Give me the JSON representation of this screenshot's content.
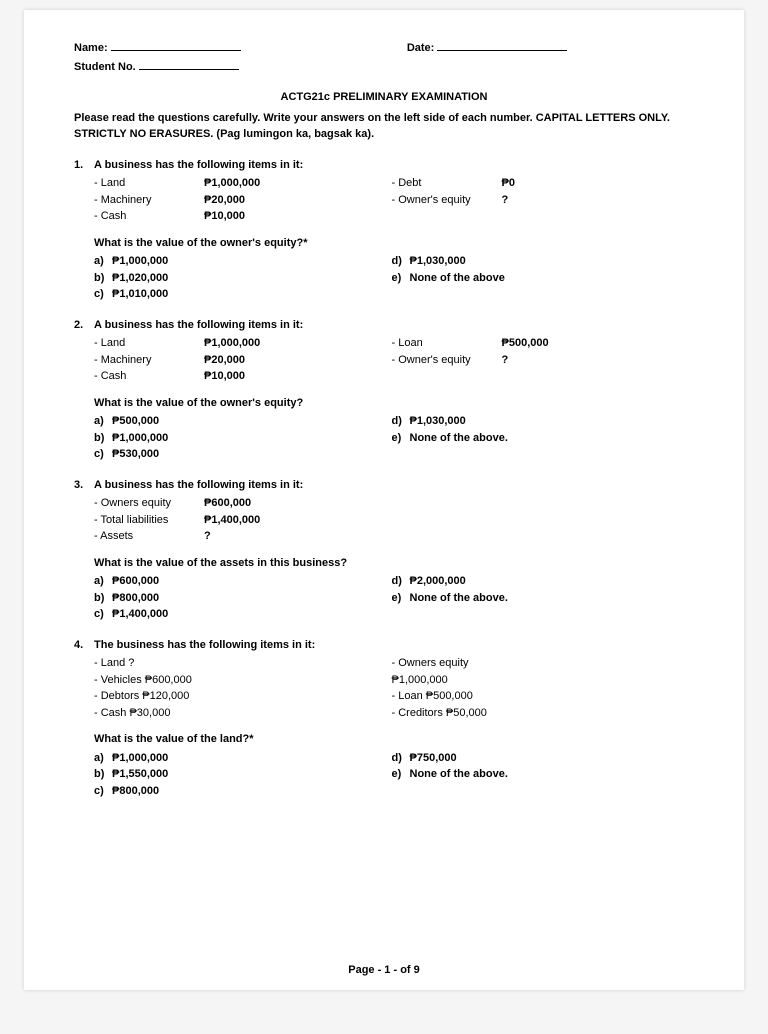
{
  "header": {
    "name_label": "Name:",
    "date_label": "Date:",
    "student_no_label": "Student No."
  },
  "title": "ACTG21c PRELIMINARY EXAMINATION",
  "intro": "Please read the questions carefully.  Write your answers on the left side of each number.  CAPITAL LETTERS ONLY.  STRICTLY NO ERASURES.  (Pag lumingon ka, bagsak ka).",
  "questions": [
    {
      "num": "1.",
      "stem": "A business has the following items in it:",
      "left_items": [
        {
          "label": "- Land",
          "val": "₱1,000,000"
        },
        {
          "label": "- Machinery",
          "val": "₱20,000"
        },
        {
          "label": "- Cash",
          "val": "₱10,000"
        }
      ],
      "right_items": [
        {
          "label": "- Debt",
          "val": "₱0"
        },
        {
          "label": "- Owner's equity",
          "val": "?"
        }
      ],
      "sub_q": "What is the value of the owner's equity?*",
      "opts_left": [
        {
          "l": "a)",
          "v": "₱1,000,000"
        },
        {
          "l": "b)",
          "v": "₱1,020,000"
        },
        {
          "l": "c)",
          "v": "₱1,010,000"
        }
      ],
      "opts_right": [
        {
          "l": "d)",
          "v": "₱1,030,000"
        },
        {
          "l": "e)",
          "v": "None of the above"
        }
      ]
    },
    {
      "num": "2.",
      "stem": "A business has the following items in it:",
      "left_items": [
        {
          "label": "- Land",
          "val": "₱1,000,000"
        },
        {
          "label": "- Machinery",
          "val": "₱20,000"
        },
        {
          "label": "- Cash",
          "val": "₱10,000"
        }
      ],
      "right_items": [
        {
          "label": "- Loan",
          "val": "₱500,000"
        },
        {
          "label": "- Owner's equity",
          "val": "?"
        }
      ],
      "sub_q": "What is the value of the owner's equity?",
      "opts_left": [
        {
          "l": "a)",
          "v": "₱500,000"
        },
        {
          "l": "b)",
          "v": "₱1,000,000"
        },
        {
          "l": "c)",
          "v": "₱530,000"
        }
      ],
      "opts_right": [
        {
          "l": "d)",
          "v": "₱1,030,000"
        },
        {
          "l": "e)",
          "v": "None of the above."
        }
      ]
    },
    {
      "num": "3.",
      "stem": "A business has the following items in it:",
      "left_items": [
        {
          "label": "- Owners equity",
          "val": "₱600,000"
        },
        {
          "label": "- Total liabilities",
          "val": "₱1,400,000"
        },
        {
          "label": "- Assets",
          "val": "?"
        }
      ],
      "right_items": [],
      "sub_q": "What is the value of the assets in this business?",
      "opts_left": [
        {
          "l": "a)",
          "v": "₱600,000"
        },
        {
          "l": "b)",
          "v": "₱800,000"
        },
        {
          "l": "c)",
          "v": "₱1,400,000"
        }
      ],
      "opts_right": [
        {
          "l": "d)",
          "v": "₱2,000,000"
        },
        {
          "l": "e)",
          "v": "None of the above."
        }
      ]
    },
    {
      "num": "4.",
      "stem": "The business has the following items in it:",
      "left_items": [
        {
          "label": "- Land ?",
          "val": ""
        },
        {
          "label": "- Vehicles ₱600,000",
          "val": ""
        },
        {
          "label": "- Debtors ₱120,000",
          "val": ""
        },
        {
          "label": "- Cash ₱30,000",
          "val": ""
        }
      ],
      "right_items": [
        {
          "label": "- Owners equity ₱1,000,000",
          "val": ""
        },
        {
          "label": "- Loan ₱500,000",
          "val": ""
        },
        {
          "label": "- Creditors ₱50,000",
          "val": ""
        }
      ],
      "sub_q": "What is the value of the land?*",
      "opts_left": [
        {
          "l": "a)",
          "v": "₱1,000,000"
        },
        {
          "l": "b)",
          "v": "₱1,550,000"
        },
        {
          "l": "c)",
          "v": "₱800,000"
        }
      ],
      "opts_right": [
        {
          "l": "d)",
          "v": "₱750,000"
        },
        {
          "l": "e)",
          "v": "None of the above."
        }
      ]
    }
  ],
  "footer": "Page - 1 - of 9"
}
